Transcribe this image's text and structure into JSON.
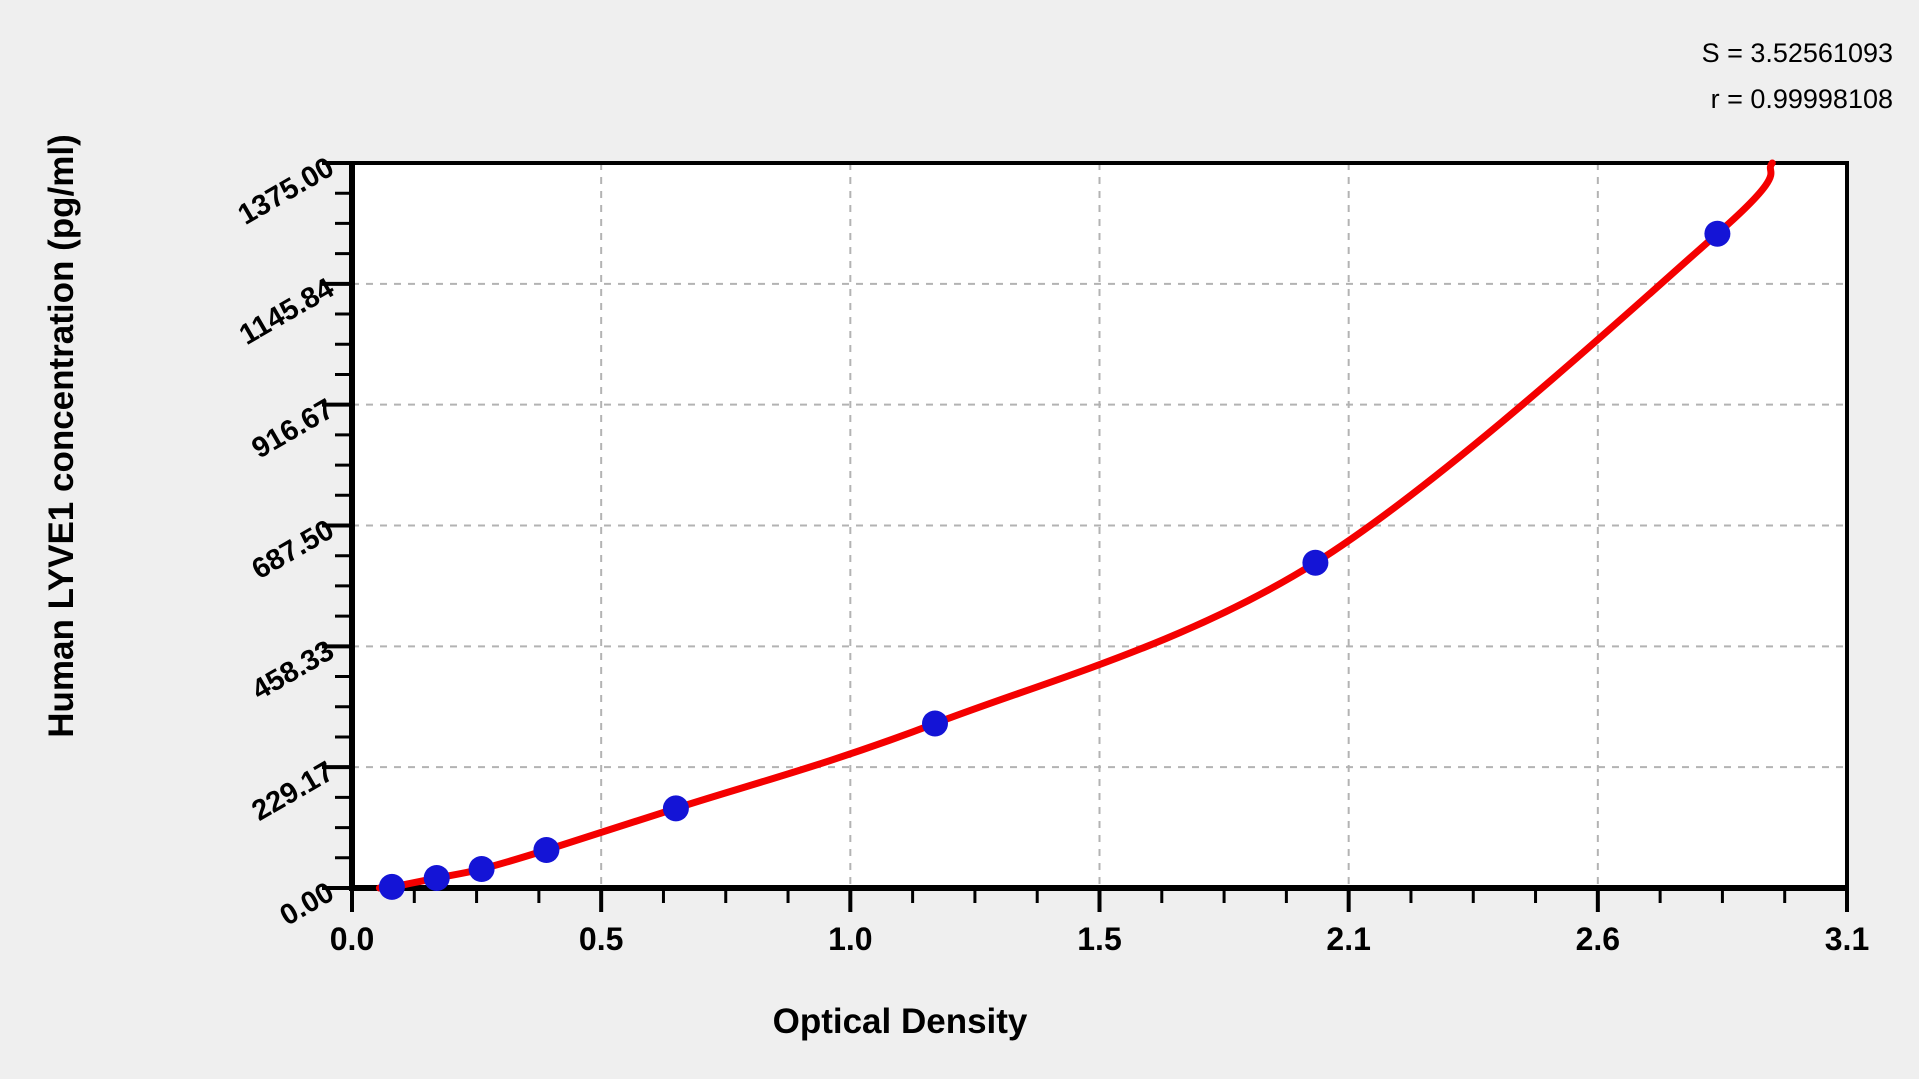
{
  "annotation": {
    "line1": "S = 3.52561093",
    "line2": "r = 0.99998108"
  },
  "chart_data": {
    "type": "scatter",
    "title": "",
    "xlabel": "Optical Density",
    "ylabel": "Human LYVE1 concentration (pg/ml)",
    "x_tick_labels": [
      "0.0",
      "0.5",
      "1.0",
      "1.5",
      "2.1",
      "2.6",
      "3.1"
    ],
    "x_tick_values": [
      0.0,
      0.5,
      1.0,
      1.5,
      2.1,
      2.6,
      3.1
    ],
    "y_tick_labels": [
      "0.00",
      "229.17",
      "458.33",
      "687.50",
      "916.67",
      "1145.84",
      "1375.00"
    ],
    "y_tick_values": [
      0.0,
      229.17,
      458.33,
      687.5,
      916.67,
      1145.84,
      1375.0
    ],
    "ylim": [
      0,
      1375
    ],
    "xlim": [
      0,
      3.1
    ],
    "grid": "dashed-major-both-axes",
    "legend": "none",
    "fit_stats": {
      "S": "3.52561093",
      "r": "0.99998108"
    },
    "series": [
      {
        "name": "standard-points",
        "type": "scatter",
        "color": "#1414d6",
        "points": [
          {
            "od": 0.08,
            "conc": 2
          },
          {
            "od": 0.17,
            "conc": 19
          },
          {
            "od": 0.26,
            "conc": 36
          },
          {
            "od": 0.39,
            "conc": 72
          },
          {
            "od": 0.65,
            "conc": 151
          },
          {
            "od": 1.17,
            "conc": 312
          },
          {
            "od": 2.02,
            "conc": 617
          },
          {
            "od": 2.84,
            "conc": 1241
          }
        ]
      },
      {
        "name": "fit-curve",
        "type": "line",
        "color": "#f40000",
        "curve_start": {
          "od": 0.055,
          "conc": 0
        },
        "curve_end": {
          "od": 2.95,
          "conc": 1375
        }
      }
    ]
  },
  "colors": {
    "page_bg": "#efefef",
    "plot_bg": "#ffffff",
    "frame": "#000000",
    "grid": "#b3b3b3",
    "curve": "#f40000",
    "points": "#1414d6",
    "text": "#000000"
  }
}
